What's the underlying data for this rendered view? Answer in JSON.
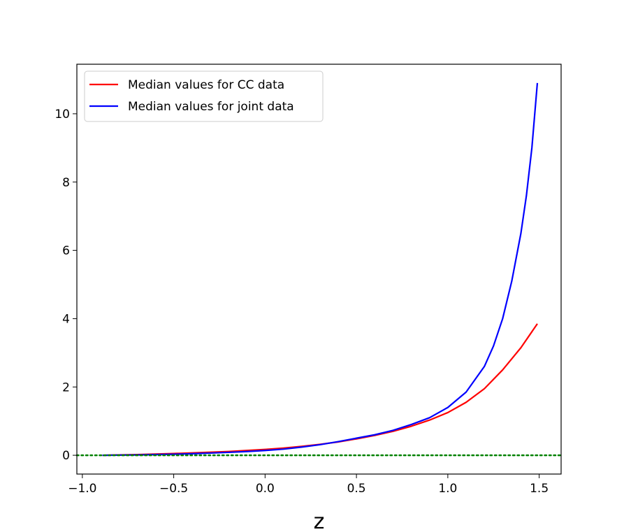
{
  "chart_data": {
    "type": "line",
    "title": "",
    "xlabel": "z",
    "ylabel": "",
    "xlim": [
      -1.03,
      1.62
    ],
    "ylim": [
      -0.55,
      11.45
    ],
    "xticks": [
      -1.0,
      -0.5,
      0.0,
      0.5,
      1.0,
      1.5
    ],
    "xtick_labels": [
      "−1.0",
      "−0.5",
      "0.0",
      "0.5",
      "1.0",
      "1.5"
    ],
    "yticks": [
      0,
      2,
      4,
      6,
      8,
      10
    ],
    "ytick_labels": [
      "0",
      "2",
      "4",
      "6",
      "8",
      "10"
    ],
    "grid": false,
    "legend_position": "top-left",
    "series": [
      {
        "name": "Median values for CC data",
        "color": "#ff0000",
        "style": "solid",
        "x": [
          -0.89,
          -0.8,
          -0.7,
          -0.6,
          -0.5,
          -0.4,
          -0.3,
          -0.2,
          -0.1,
          0.0,
          0.1,
          0.2,
          0.3,
          0.4,
          0.5,
          0.6,
          0.7,
          0.8,
          0.9,
          1.0,
          1.1,
          1.2,
          1.3,
          1.4,
          1.49
        ],
        "y": [
          0.0,
          0.01,
          0.02,
          0.035,
          0.05,
          0.07,
          0.09,
          0.11,
          0.14,
          0.17,
          0.21,
          0.26,
          0.32,
          0.39,
          0.48,
          0.58,
          0.7,
          0.85,
          1.03,
          1.25,
          1.55,
          1.95,
          2.5,
          3.15,
          3.85
        ]
      },
      {
        "name": "Median values for joint data",
        "color": "#0000ff",
        "style": "solid",
        "x": [
          -0.89,
          -0.8,
          -0.7,
          -0.6,
          -0.5,
          -0.4,
          -0.3,
          -0.2,
          -0.1,
          0.0,
          0.1,
          0.2,
          0.3,
          0.4,
          0.5,
          0.6,
          0.7,
          0.8,
          0.9,
          1.0,
          1.1,
          1.2,
          1.25,
          1.3,
          1.35,
          1.4,
          1.43,
          1.46,
          1.49
        ],
        "y": [
          0.0,
          0.004,
          0.01,
          0.02,
          0.03,
          0.045,
          0.065,
          0.085,
          0.11,
          0.14,
          0.18,
          0.24,
          0.31,
          0.4,
          0.5,
          0.6,
          0.73,
          0.9,
          1.1,
          1.4,
          1.85,
          2.6,
          3.2,
          4.0,
          5.1,
          6.5,
          7.6,
          9.0,
          10.9
        ]
      },
      {
        "name": "",
        "color": "#008000",
        "style": "dotted",
        "x": [
          -1.03,
          1.62
        ],
        "y": [
          0,
          0
        ]
      }
    ]
  }
}
